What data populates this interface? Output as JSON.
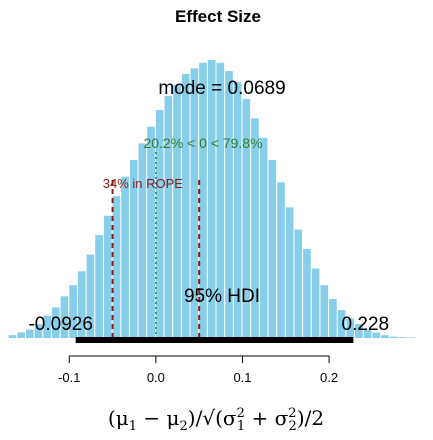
{
  "chart_data": {
    "type": "histogram",
    "title": "Effect Size",
    "xlabel_parts": {
      "numerator": "(μ",
      "sub1": "1",
      "minus": " − μ",
      "sub2": "2",
      "close": ")",
      "slash": "/",
      "sqrt": "√",
      "inner_open": "(σ",
      "sq": "2",
      "plus": " + σ",
      "inner_close": ")/2"
    },
    "xlim": [
      -0.18,
      0.32
    ],
    "xticks": [
      -0.1,
      0.0,
      0.1,
      0.2
    ],
    "xtick_labels": [
      "-0.1",
      "0.0",
      "0.1",
      "0.2"
    ],
    "bin_width": 0.01,
    "bins_start": -0.17,
    "density_peak": 1,
    "counts": [
      0.01,
      0.02,
      0.03,
      0.05,
      0.08,
      0.11,
      0.15,
      0.19,
      0.24,
      0.3,
      0.37,
      0.44,
      0.51,
      0.58,
      0.64,
      0.7,
      0.76,
      0.82,
      0.87,
      0.91,
      0.95,
      0.97,
      0.99,
      1.0,
      0.99,
      0.96,
      0.92,
      0.86,
      0.79,
      0.72,
      0.64,
      0.56,
      0.47,
      0.39,
      0.32,
      0.25,
      0.19,
      0.14,
      0.1,
      0.07,
      0.05,
      0.03,
      0.02,
      0.01,
      0.005,
      0.003,
      0.002
    ],
    "bar_color": "#87ceeb",
    "mode_label": "mode = 0.0689",
    "comp_label": "20.2% < 0 < 79.8%",
    "comp_value": 0,
    "comp_color": "#2e7d32",
    "rope_label": "34% in ROPE",
    "rope": [
      -0.05,
      0.05
    ],
    "rope_color": "#8b1a1a",
    "hdi_label": "95% HDI",
    "hdi": [
      -0.0926,
      0.228
    ],
    "hdi_low_label": "-0.0926",
    "hdi_high_label": "0.228"
  }
}
